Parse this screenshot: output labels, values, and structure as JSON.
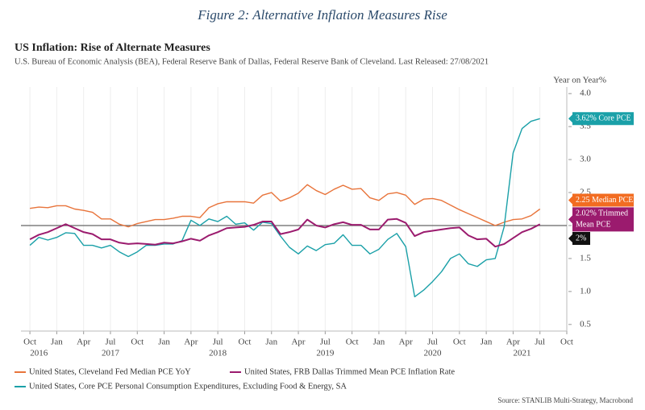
{
  "figure_title": "Figure 2: Alternative Inflation Measures Rise",
  "chart_data": {
    "type": "line",
    "title": "US Inflation: Rise of Alternate Measures",
    "subtitle": "U.S. Bureau of Economic Analysis (BEA), Federal Reserve Bank of Dallas, Federal Reserve Bank of Cleveland. Last Released: 27/08/2021",
    "y_axis_label": "Year on Year%",
    "source": "Source: STANLIB Multi-Strategy, Macrobond",
    "x": [
      "2016-10",
      "2016-11",
      "2016-12",
      "2017-01",
      "2017-02",
      "2017-03",
      "2017-04",
      "2017-05",
      "2017-06",
      "2017-07",
      "2017-08",
      "2017-09",
      "2017-10",
      "2017-11",
      "2017-12",
      "2018-01",
      "2018-02",
      "2018-03",
      "2018-04",
      "2018-05",
      "2018-06",
      "2018-07",
      "2018-08",
      "2018-09",
      "2018-10",
      "2018-11",
      "2018-12",
      "2019-01",
      "2019-02",
      "2019-03",
      "2019-04",
      "2019-05",
      "2019-06",
      "2019-07",
      "2019-08",
      "2019-09",
      "2019-10",
      "2019-11",
      "2019-12",
      "2020-01",
      "2020-02",
      "2020-03",
      "2020-04",
      "2020-05",
      "2020-06",
      "2020-07",
      "2020-08",
      "2020-09",
      "2020-10",
      "2020-11",
      "2020-12",
      "2021-01",
      "2021-02",
      "2021-03",
      "2021-04",
      "2021-05",
      "2021-06",
      "2021-07"
    ],
    "xlim": [
      "2016-09",
      "2021-10"
    ],
    "xticks": [
      {
        "value": "2016-10",
        "label": "Oct"
      },
      {
        "value": "2017-01",
        "label": "Jan"
      },
      {
        "value": "2017-04",
        "label": "Apr"
      },
      {
        "value": "2017-07",
        "label": "Jul"
      },
      {
        "value": "2017-10",
        "label": "Oct"
      },
      {
        "value": "2018-01",
        "label": "Jan"
      },
      {
        "value": "2018-04",
        "label": "Apr"
      },
      {
        "value": "2018-07",
        "label": "Jul"
      },
      {
        "value": "2018-10",
        "label": "Oct"
      },
      {
        "value": "2019-01",
        "label": "Jan"
      },
      {
        "value": "2019-04",
        "label": "Apr"
      },
      {
        "value": "2019-07",
        "label": "Jul"
      },
      {
        "value": "2019-10",
        "label": "Oct"
      },
      {
        "value": "2020-01",
        "label": "Jan"
      },
      {
        "value": "2020-04",
        "label": "Apr"
      },
      {
        "value": "2020-07",
        "label": "Jul"
      },
      {
        "value": "2020-10",
        "label": "Oct"
      },
      {
        "value": "2021-01",
        "label": "Jan"
      },
      {
        "value": "2021-04",
        "label": "Apr"
      },
      {
        "value": "2021-07",
        "label": "Jul"
      },
      {
        "value": "2021-10",
        "label": "Oct"
      }
    ],
    "year_labels": [
      {
        "value": "2016-11",
        "label": "2016"
      },
      {
        "value": "2017-07",
        "label": "2017"
      },
      {
        "value": "2018-07",
        "label": "2018"
      },
      {
        "value": "2019-07",
        "label": "2019"
      },
      {
        "value": "2020-07",
        "label": "2020"
      },
      {
        "value": "2021-05",
        "label": "2021"
      }
    ],
    "ylim": [
      0.4,
      4.1
    ],
    "yticks": [
      0.5,
      {
        "value": 1.0,
        "label": "1.0"
      },
      1.5,
      {
        "value": 2.0,
        "label": "2.0"
      },
      2.5,
      {
        "value": 3.0,
        "label": "3.0"
      },
      3.5,
      {
        "value": 4.0,
        "label": "4.0"
      }
    ],
    "grid": true,
    "reference_line": {
      "value": 2,
      "color": "#666666"
    },
    "series": [
      {
        "name": "United States, Cleveland Fed Median PCE YoY",
        "color": "#e8743b",
        "values": [
          2.26,
          2.28,
          2.27,
          2.3,
          2.3,
          2.25,
          2.23,
          2.2,
          2.1,
          2.1,
          2.02,
          1.98,
          2.03,
          2.06,
          2.09,
          2.09,
          2.11,
          2.14,
          2.14,
          2.12,
          2.27,
          2.33,
          2.36,
          2.36,
          2.36,
          2.34,
          2.46,
          2.5,
          2.37,
          2.42,
          2.49,
          2.62,
          2.53,
          2.47,
          2.55,
          2.61,
          2.55,
          2.56,
          2.42,
          2.38,
          2.48,
          2.5,
          2.46,
          2.32,
          2.4,
          2.41,
          2.38,
          2.31,
          2.24,
          2.18,
          2.12,
          2.06,
          2.0,
          2.05,
          2.09,
          2.1,
          2.15,
          2.25
        ]
      },
      {
        "name": "United States, FRB Dallas Trimmed Mean PCE Inflation Rate",
        "color": "#9b1b6e",
        "values": [
          1.79,
          1.86,
          1.9,
          1.96,
          2.02,
          1.96,
          1.9,
          1.87,
          1.79,
          1.79,
          1.74,
          1.72,
          1.73,
          1.72,
          1.71,
          1.74,
          1.73,
          1.76,
          1.8,
          1.77,
          1.85,
          1.9,
          1.96,
          1.97,
          1.98,
          2.01,
          2.06,
          2.06,
          1.87,
          1.9,
          1.94,
          2.09,
          2.0,
          1.97,
          2.02,
          2.05,
          2.01,
          2.01,
          1.94,
          1.94,
          2.09,
          2.1,
          2.04,
          1.84,
          1.9,
          1.92,
          1.94,
          1.96,
          1.97,
          1.85,
          1.79,
          1.8,
          1.68,
          1.72,
          1.81,
          1.9,
          1.95,
          2.02
        ]
      },
      {
        "name": "United States, Core PCE Personal Consumption Expenditures, Excluding Food & Energy, SA",
        "color": "#1aa0a8",
        "values": [
          1.7,
          1.82,
          1.78,
          1.82,
          1.89,
          1.88,
          1.7,
          1.7,
          1.66,
          1.7,
          1.6,
          1.53,
          1.6,
          1.7,
          1.7,
          1.72,
          1.72,
          1.77,
          2.08,
          2.0,
          2.1,
          2.06,
          2.14,
          2.02,
          2.04,
          1.93,
          2.05,
          2.03,
          1.84,
          1.67,
          1.57,
          1.69,
          1.62,
          1.71,
          1.73,
          1.86,
          1.7,
          1.7,
          1.57,
          1.64,
          1.79,
          1.88,
          1.68,
          0.92,
          1.02,
          1.15,
          1.3,
          1.5,
          1.57,
          1.42,
          1.38,
          1.48,
          1.5,
          1.98,
          3.1,
          3.47,
          3.58,
          3.62
        ]
      }
    ],
    "annotations": [
      {
        "text": "3.62% Core PCE",
        "value": 3.62,
        "color": "#1aa0a8"
      },
      {
        "text": "2.25 Median PCE",
        "value": 2.25,
        "color": "#f26c21"
      },
      {
        "text": "2.02% Trimmed Mean PCE",
        "value": 2.02,
        "color": "#9b1b6e"
      },
      {
        "text": "2%",
        "value": 2,
        "color": "#111111"
      }
    ]
  }
}
